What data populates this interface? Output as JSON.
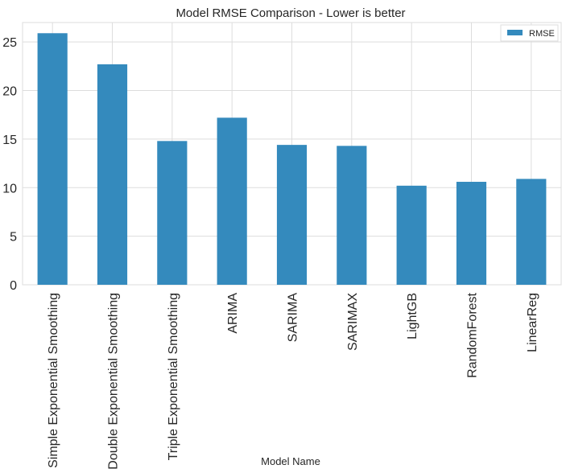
{
  "chart_data": {
    "type": "bar",
    "title": "Model RMSE Comparison - Lower is better",
    "xlabel": "Model Name",
    "ylabel": "",
    "categories": [
      "Simple Exponential Smoothing",
      "Double Exponential Smoothing",
      "Triple Exponential Smoothing",
      "ARIMA",
      "SARIMA",
      "SARIMAX",
      "LightGB",
      "RandomForest",
      "LinearReg"
    ],
    "series": [
      {
        "name": "RMSE",
        "values": [
          25.9,
          22.7,
          14.8,
          17.2,
          14.4,
          14.3,
          10.2,
          10.6,
          10.9
        ]
      }
    ],
    "ylim": [
      0,
      27
    ],
    "yticks": [
      0,
      5,
      10,
      15,
      20,
      25
    ],
    "grid": true,
    "legend_position": "top-right",
    "colors": {
      "bar": "#348abd",
      "grid": "#dddddd",
      "text": "#262626"
    }
  }
}
